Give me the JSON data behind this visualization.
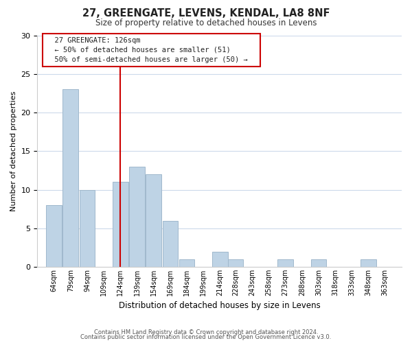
{
  "title": "27, GREENGATE, LEVENS, KENDAL, LA8 8NF",
  "subtitle": "Size of property relative to detached houses in Levens",
  "xlabel": "Distribution of detached houses by size in Levens",
  "ylabel": "Number of detached properties",
  "bin_edges": [
    64,
    79,
    94,
    109,
    124,
    139,
    154,
    169,
    184,
    199,
    214,
    228,
    243,
    258,
    273,
    288,
    303,
    318,
    333,
    348,
    363,
    378
  ],
  "counts": [
    8,
    23,
    10,
    0,
    11,
    13,
    12,
    6,
    1,
    0,
    2,
    1,
    0,
    0,
    1,
    0,
    1,
    0,
    0,
    1,
    0
  ],
  "bin_labels": [
    "64sqm",
    "79sqm",
    "94sqm",
    "109sqm",
    "124sqm",
    "139sqm",
    "154sqm",
    "169sqm",
    "184sqm",
    "199sqm",
    "214sqm",
    "228sqm",
    "243sqm",
    "258sqm",
    "273sqm",
    "288sqm",
    "303sqm",
    "318sqm",
    "333sqm",
    "348sqm",
    "363sqm"
  ],
  "bar_color": "#bed3e5",
  "bar_edgecolor": "#a0b8cc",
  "reference_line_x": 124,
  "reference_line_color": "#cc0000",
  "ylim": [
    0,
    30
  ],
  "yticks": [
    0,
    5,
    10,
    15,
    20,
    25,
    30
  ],
  "annotation_title": "27 GREENGATE: 126sqm",
  "annotation_line1": "← 50% of detached houses are smaller (51)",
  "annotation_line2": "50% of semi-detached houses are larger (50) →",
  "annotation_box_edgecolor": "#cc0000",
  "annotation_box_facecolor": "#ffffff",
  "footer_line1": "Contains HM Land Registry data © Crown copyright and database right 2024.",
  "footer_line2": "Contains public sector information licensed under the Open Government Licence v3.0.",
  "background_color": "#ffffff",
  "grid_color": "#ccdaeb"
}
